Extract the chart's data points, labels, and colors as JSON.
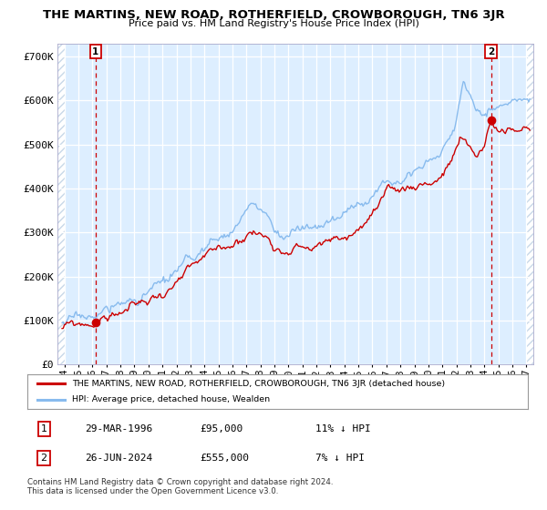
{
  "title": "THE MARTINS, NEW ROAD, ROTHERFIELD, CROWBOROUGH, TN6 3JR",
  "subtitle": "Price paid vs. HM Land Registry's House Price Index (HPI)",
  "bg_color": "#ddeeff",
  "fig_color": "#ffffff",
  "hpi_color": "#88bbee",
  "price_color": "#cc0000",
  "marker_color": "#cc0000",
  "vline_color": "#cc0000",
  "grid_color": "#ffffff",
  "hatch_color": "#c8d8e8",
  "ylabel_vals": [
    "£0",
    "£100K",
    "£200K",
    "£300K",
    "£400K",
    "£500K",
    "£600K",
    "£700K"
  ],
  "ylim": [
    0,
    730000
  ],
  "yticks": [
    0,
    100000,
    200000,
    300000,
    400000,
    500000,
    600000,
    700000
  ],
  "sale1_date": 1996.23,
  "sale1_price": 95000,
  "sale2_date": 2024.48,
  "sale2_price": 555000,
  "legend_line1": "THE MARTINS, NEW ROAD, ROTHERFIELD, CROWBOROUGH, TN6 3JR (detached house)",
  "legend_line2": "HPI: Average price, detached house, Wealden",
  "table_row1": [
    "1",
    "29-MAR-1996",
    "£95,000",
    "11% ↓ HPI"
  ],
  "table_row2": [
    "2",
    "26-JUN-2024",
    "£555,000",
    "7% ↓ HPI"
  ],
  "footer": "Contains HM Land Registry data © Crown copyright and database right 2024.\nThis data is licensed under the Open Government Licence v3.0.",
  "xmin": 1993.5,
  "xmax": 2027.5,
  "xticks": [
    1994,
    1995,
    1996,
    1997,
    1998,
    1999,
    2000,
    2001,
    2002,
    2003,
    2004,
    2005,
    2006,
    2007,
    2008,
    2009,
    2010,
    2011,
    2012,
    2013,
    2014,
    2015,
    2016,
    2017,
    2018,
    2019,
    2020,
    2021,
    2022,
    2023,
    2024,
    2025,
    2026,
    2027
  ]
}
